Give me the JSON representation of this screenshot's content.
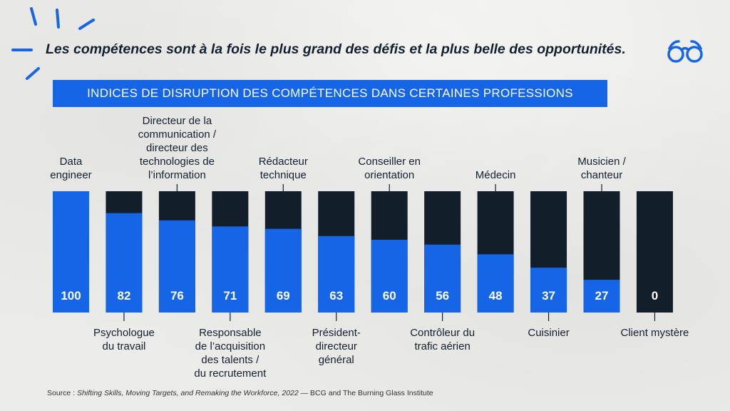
{
  "headline": "Les compétences sont à la fois le plus grand des défis et la plus belle des opportunités.",
  "banner_title": "INDICES DE DISRUPTION DES COMPÉTENCES DANS CERTAINES PROFESSIONS",
  "source": {
    "prefix": "Source : ",
    "title": "Shifting Skills, Moving Targets, and Remaking the Workforce, 2022",
    "suffix": " — BCG and The Burning Glass Institute"
  },
  "colors": {
    "blue": "#1565e6",
    "dark": "#121e2a",
    "text": "#14202e",
    "background": "#ececea"
  },
  "icons": [
    "burst-lines",
    "glasses-icon"
  ],
  "chart_data": {
    "type": "bar",
    "stacked_to_100": true,
    "ylim": [
      0,
      100
    ],
    "categories": [
      [
        "Data",
        "engineer"
      ],
      [
        "Psychologue",
        "du travail"
      ],
      [
        "Directeur de la",
        "communication /",
        "directeur des",
        "technologies de",
        "l’information"
      ],
      [
        "Responsable",
        "de l’acquisition",
        "des talents /",
        "du recrutement"
      ],
      [
        "Rédacteur",
        "technique"
      ],
      [
        "Président-",
        "directeur",
        "général"
      ],
      [
        "Conseiller en",
        "orientation"
      ],
      [
        "Contrôleur du",
        "trafic aérien"
      ],
      [
        "Médecin"
      ],
      [
        "Cuisinier"
      ],
      [
        "Musicien /",
        "chanteur"
      ],
      [
        "Client mystère"
      ]
    ],
    "label_positions": [
      "above",
      "below",
      "above",
      "below",
      "above",
      "below",
      "above",
      "below",
      "above",
      "below",
      "above",
      "below"
    ],
    "values": [
      100,
      82,
      76,
      71,
      69,
      63,
      60,
      56,
      48,
      37,
      27,
      0
    ]
  }
}
